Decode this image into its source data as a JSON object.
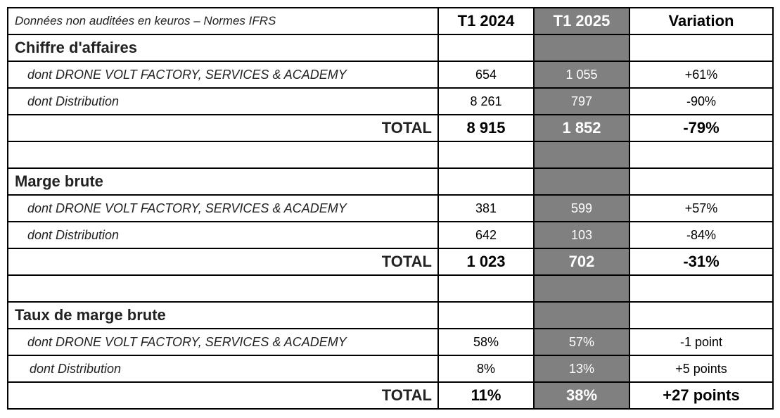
{
  "caption": "Données non auditées en keuros – Normes IFRS",
  "headers": {
    "col1": "T1 2024",
    "col2": "T1 2025",
    "col3": "Variation"
  },
  "sections": [
    {
      "title": "Chiffre d'affaires",
      "rows": [
        {
          "label": "dont DRONE VOLT FACTORY, SERVICES & ACADEMY",
          "t1_2024": "654",
          "t1_2025": "1 055",
          "variation": "+61%"
        },
        {
          "label": "dont Distribution",
          "t1_2024": "8 261",
          "t1_2025": "797",
          "variation": "-90%"
        }
      ],
      "total": {
        "label": "TOTAL",
        "t1_2024": "8 915",
        "t1_2025": "1 852",
        "variation": "-79%"
      }
    },
    {
      "title": "Marge brute",
      "rows": [
        {
          "label": "dont DRONE VOLT FACTORY, SERVICES & ACADEMY",
          "t1_2024": "381",
          "t1_2025": "599",
          "variation": "+57%"
        },
        {
          "label": "dont Distribution",
          "t1_2024": "642",
          "t1_2025": "103",
          "variation": "-84%"
        }
      ],
      "total": {
        "label": "TOTAL",
        "t1_2024": "1 023",
        "t1_2025": "702",
        "variation": "-31%"
      }
    },
    {
      "title": "Taux de marge brute",
      "rows": [
        {
          "label": "dont DRONE VOLT FACTORY, SERVICES & ACADEMY",
          "t1_2024": "58%",
          "t1_2025": "57%",
          "variation": "-1 point"
        },
        {
          "label": "dont Distribution",
          "t1_2024": "8%",
          "t1_2025": "13%",
          "variation": "+5 points"
        }
      ],
      "total": {
        "label": "TOTAL",
        "t1_2024": "11%",
        "t1_2025": "38%",
        "variation": "+27 points"
      }
    }
  ]
}
